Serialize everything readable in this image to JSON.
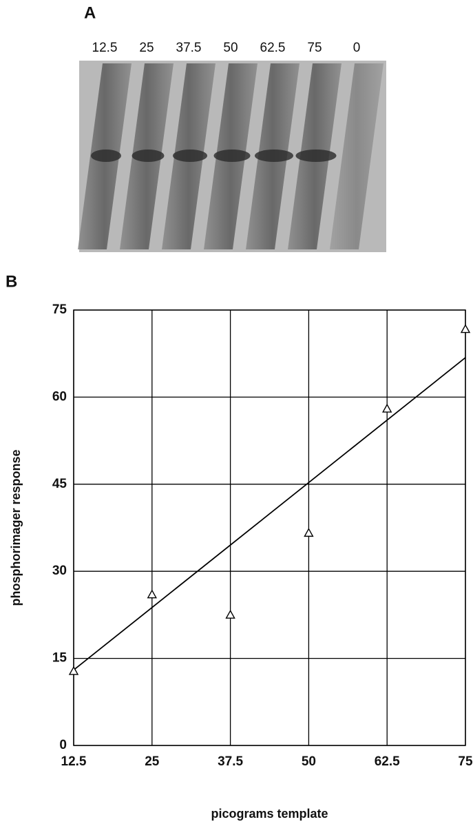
{
  "panel_a": {
    "label": "A",
    "lanes": [
      "12.5",
      "25",
      "37.5",
      "50",
      "62.5",
      "75",
      "0"
    ]
  },
  "chart_data": {
    "type": "scatter",
    "panel_label": "B",
    "x_label": "picograms template",
    "y_label": "phosphorimager response",
    "x": [
      12.5,
      25,
      37.5,
      50,
      62.5,
      75
    ],
    "values": [
      12.8,
      26,
      22.5,
      36.6,
      58,
      71.7
    ],
    "marker": "triangle",
    "color": "#000000",
    "fit_line": {
      "x": [
        12.5,
        75
      ],
      "values": [
        13,
        66.8
      ]
    },
    "xlim": [
      12.5,
      75
    ],
    "ylim": [
      0,
      75
    ],
    "xticks": [
      12.5,
      25,
      37.5,
      50,
      62.5,
      75
    ],
    "yticks": [
      0,
      15,
      30,
      45,
      60,
      75
    ],
    "grid": true
  }
}
